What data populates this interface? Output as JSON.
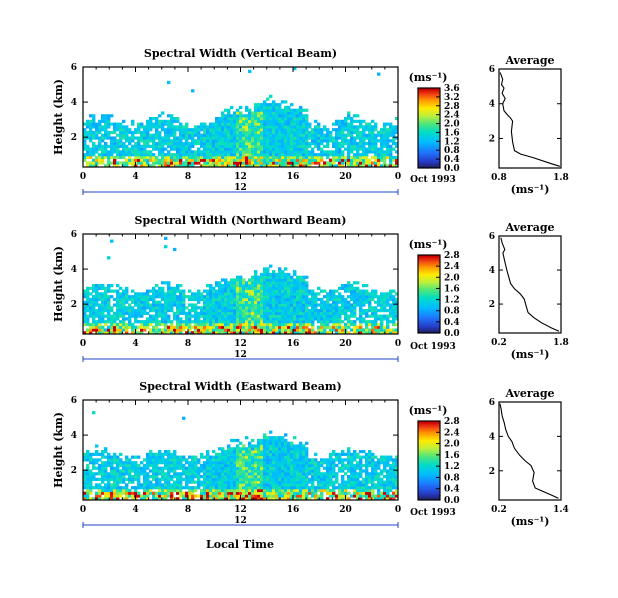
{
  "figure": {
    "bottom_xlabel": "Local Time",
    "date_label": "Oct 1993"
  },
  "chart_data": [
    {
      "type": "heatmap",
      "title": "Spectral Width (Vertical Beam)",
      "ylabel": "Height (km)",
      "xlabel": "Local Time",
      "x_ticks": [
        "0",
        "4",
        "8",
        "12",
        "16",
        "20",
        "0"
      ],
      "y_ticks": [
        "2",
        "4",
        "6"
      ],
      "xlim": [
        0,
        24
      ],
      "ylim": [
        0.3,
        6
      ],
      "secondary_label": "12",
      "date_label": "Oct 1993",
      "colorbar": {
        "unit": "(ms⁻¹)",
        "ticks": [
          "0.0",
          "0.4",
          "0.8",
          "1.2",
          "1.6",
          "2.0",
          "2.4",
          "2.8",
          "3.2",
          "3.6"
        ],
        "range": [
          0,
          3.6
        ]
      },
      "average_profile": {
        "title": "Average",
        "xlabel": "(ms⁻¹)",
        "x_ticks": [
          "0.8",
          "1.8"
        ],
        "xlim": [
          0.8,
          1.8
        ],
        "y_ticks": [
          "2",
          "4",
          "6"
        ],
        "ylim": [
          0.3,
          6
        ],
        "points": [
          [
            1.78,
            0.4
          ],
          [
            1.6,
            0.6
          ],
          [
            1.35,
            0.9
          ],
          [
            1.15,
            1.1
          ],
          [
            1.05,
            1.3
          ],
          [
            1.02,
            1.8
          ],
          [
            1.0,
            2.4
          ],
          [
            1.02,
            3.0
          ],
          [
            0.98,
            3.2
          ],
          [
            0.95,
            3.3
          ],
          [
            0.88,
            3.6
          ],
          [
            0.86,
            4.0
          ],
          [
            0.9,
            4.3
          ],
          [
            0.85,
            4.6
          ],
          [
            0.88,
            4.9
          ],
          [
            0.84,
            5.1
          ],
          [
            0.86,
            5.4
          ],
          [
            0.82,
            5.8
          ]
        ]
      }
    },
    {
      "type": "heatmap",
      "title": "Spectral Width (Northward Beam)",
      "ylabel": "Height (km)",
      "xlabel": "Local Time",
      "x_ticks": [
        "0",
        "4",
        "8",
        "12",
        "16",
        "20",
        "0"
      ],
      "y_ticks": [
        "2",
        "4",
        "6"
      ],
      "xlim": [
        0,
        24
      ],
      "ylim": [
        0.3,
        6
      ],
      "secondary_label": "12",
      "date_label": "Oct 1993",
      "colorbar": {
        "unit": "(ms⁻¹)",
        "ticks": [
          "0.0",
          "0.4",
          "0.8",
          "1.2",
          "1.6",
          "2.0",
          "2.4",
          "2.8"
        ],
        "range": [
          0,
          2.8
        ]
      },
      "average_profile": {
        "title": "Average",
        "xlabel": "(ms⁻¹)",
        "x_ticks": [
          "0.2",
          "1.8"
        ],
        "xlim": [
          0.2,
          1.8
        ],
        "y_ticks": [
          "2",
          "4",
          "6"
        ],
        "ylim": [
          0.3,
          6
        ],
        "points": [
          [
            1.75,
            0.4
          ],
          [
            1.55,
            0.6
          ],
          [
            1.3,
            0.9
          ],
          [
            1.1,
            1.2
          ],
          [
            0.95,
            1.5
          ],
          [
            0.9,
            1.9
          ],
          [
            0.85,
            2.3
          ],
          [
            0.75,
            2.6
          ],
          [
            0.6,
            2.9
          ],
          [
            0.5,
            3.2
          ],
          [
            0.45,
            3.6
          ],
          [
            0.4,
            4.0
          ],
          [
            0.35,
            4.5
          ],
          [
            0.3,
            5.0
          ],
          [
            0.35,
            5.2
          ],
          [
            0.28,
            5.6
          ],
          [
            0.25,
            5.9
          ]
        ]
      }
    },
    {
      "type": "heatmap",
      "title": "Spectral Width (Eastward Beam)",
      "ylabel": "Height (km)",
      "xlabel": "Local Time",
      "x_ticks": [
        "0",
        "4",
        "8",
        "12",
        "16",
        "20",
        "0"
      ],
      "y_ticks": [
        "2",
        "4",
        "6"
      ],
      "xlim": [
        0,
        24
      ],
      "ylim": [
        0.3,
        6
      ],
      "secondary_label": "12",
      "date_label": "Oct 1993",
      "colorbar": {
        "unit": "(ms⁻¹)",
        "ticks": [
          "0.0",
          "0.4",
          "0.8",
          "1.2",
          "1.6",
          "2.0",
          "2.4",
          "2.8"
        ],
        "range": [
          0,
          2.8
        ]
      },
      "average_profile": {
        "title": "Average",
        "xlabel": "(ms⁻¹)",
        "x_ticks": [
          "0.2",
          "1.4"
        ],
        "xlim": [
          0.2,
          1.4
        ],
        "y_ticks": [
          "2",
          "4",
          "6"
        ],
        "ylim": [
          0.3,
          6
        ],
        "points": [
          [
            1.35,
            0.4
          ],
          [
            1.2,
            0.6
          ],
          [
            1.05,
            0.8
          ],
          [
            0.9,
            1.0
          ],
          [
            0.85,
            1.4
          ],
          [
            0.88,
            1.9
          ],
          [
            0.82,
            2.3
          ],
          [
            0.7,
            2.6
          ],
          [
            0.6,
            2.9
          ],
          [
            0.5,
            3.3
          ],
          [
            0.45,
            3.7
          ],
          [
            0.38,
            4.0
          ],
          [
            0.33,
            4.4
          ],
          [
            0.3,
            4.8
          ],
          [
            0.26,
            5.2
          ],
          [
            0.24,
            5.6
          ],
          [
            0.22,
            5.9
          ]
        ]
      }
    }
  ]
}
